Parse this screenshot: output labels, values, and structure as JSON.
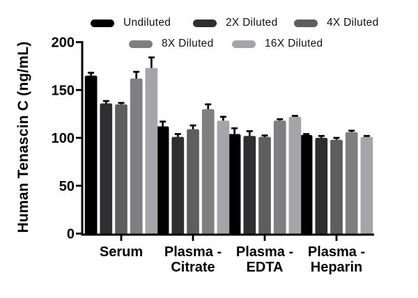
{
  "figure": {
    "background": "#ffffff",
    "axis_color": "#000000"
  },
  "chart_data": {
    "type": "bar",
    "title": "",
    "xlabel": "",
    "ylabel": "Human Tenascin C (ng/mL)",
    "ylim": [
      0,
      200
    ],
    "yticks": [
      0,
      50,
      100,
      150,
      200
    ],
    "grid": false,
    "legend_position": "top",
    "error_bars": "upper_sd_only",
    "categories": [
      "Serum",
      "Plasma -\nCitrate",
      "Plasma -\nEDTA",
      "Plasma -\nHeparin"
    ],
    "series": [
      {
        "name": "Undiluted",
        "color": "#000000",
        "values": [
          165,
          112,
          104,
          103
        ],
        "errors_plus": [
          3,
          5,
          6,
          1
        ]
      },
      {
        "name": "2X Diluted",
        "color": "#2f2f31",
        "values": [
          136,
          101,
          102,
          100
        ],
        "errors_plus": [
          2.5,
          3,
          5,
          2
        ]
      },
      {
        "name": "4X Diluted",
        "color": "#5e5e5e",
        "values": [
          135,
          109,
          101,
          98
        ],
        "errors_plus": [
          1.5,
          4,
          1.5,
          2
        ]
      },
      {
        "name": "8X Diluted",
        "color": "#7f7f81",
        "values": [
          162,
          130,
          118,
          106
        ],
        "errors_plus": [
          7,
          5,
          1.5,
          1.5
        ]
      },
      {
        "name": "16X Diluted",
        "color": "#a5a5a9",
        "values": [
          173,
          118,
          122,
          101
        ],
        "errors_plus": [
          11,
          4,
          1,
          1
        ]
      }
    ]
  }
}
